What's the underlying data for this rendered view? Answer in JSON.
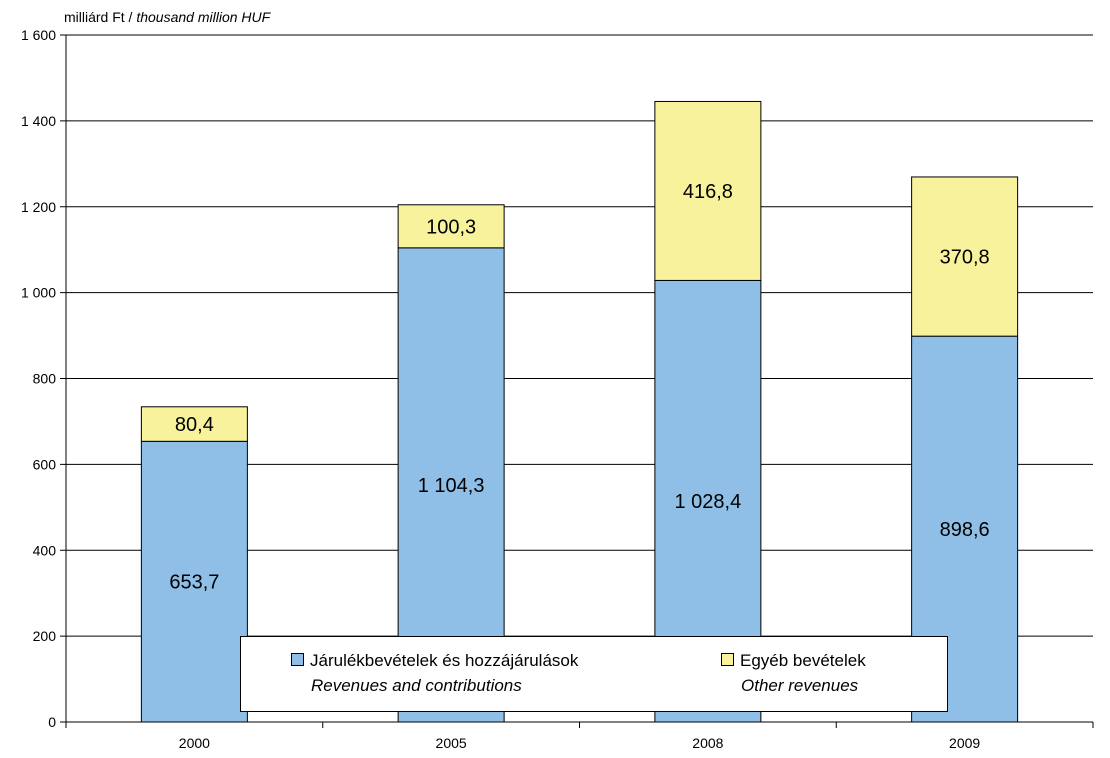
{
  "unit_label": {
    "main": "milliárd Ft /",
    "italic": "thousand million HUF"
  },
  "colors": {
    "contributions": "#8fbfe6",
    "other": "#f7f29b",
    "axis": "#000000"
  },
  "legend": {
    "items": [
      {
        "line1": "Járulékbevételek és hozzájárulások",
        "line2": "Revenues and contributions",
        "color": "#8fbfe6"
      },
      {
        "line1": "Egyéb bevételek",
        "line2": "Other revenues",
        "color": "#f7f29b"
      }
    ]
  },
  "chart_data": {
    "type": "bar",
    "stacked": true,
    "categories": [
      "2000",
      "2005",
      "2008",
      "2009"
    ],
    "series": [
      {
        "name": "Járulékbevételek és hozzájárulások / Revenues and contributions",
        "values": [
          653.7,
          1104.3,
          1028.4,
          898.6
        ],
        "labels": [
          "653,7",
          "1 104,3",
          "1 028,4",
          "898,6"
        ]
      },
      {
        "name": "Egyéb bevételek / Other revenues",
        "values": [
          80.4,
          100.3,
          416.8,
          370.8
        ],
        "labels": [
          "80,4",
          "100,3",
          "416,8",
          "370,8"
        ]
      }
    ],
    "ylim": [
      0,
      1600
    ],
    "yticks": [
      0,
      200,
      400,
      600,
      800,
      1000,
      1200,
      1400,
      1600
    ],
    "ytick_labels": [
      "0",
      "200",
      "400",
      "600",
      "800",
      "1 000",
      "1 200",
      "1 400",
      "1 600"
    ],
    "grid": true,
    "legend_position": "bottom-center"
  }
}
